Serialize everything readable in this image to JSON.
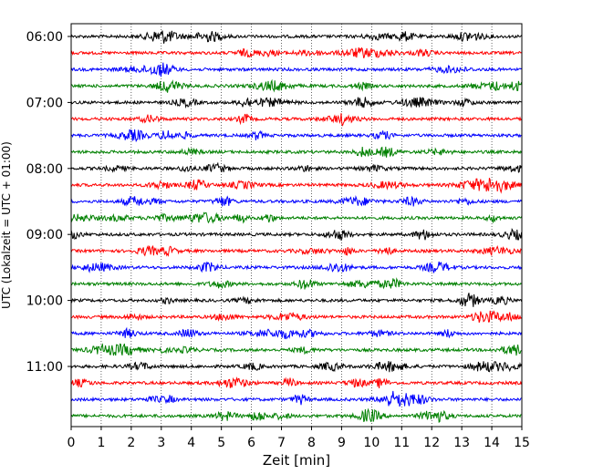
{
  "chart_data": {
    "type": "line",
    "title": "",
    "xlabel": "Zeit  [min]",
    "ylabel": "UTC (Lokalzeit = UTC + 01:00)",
    "xlim": [
      0,
      15
    ],
    "x_ticks": [
      "0",
      "1",
      "2",
      "3",
      "4",
      "5",
      "6",
      "7",
      "8",
      "9",
      "10",
      "11",
      "12",
      "13",
      "14",
      "15"
    ],
    "y_ticks": [
      "06:00",
      "07:00",
      "08:00",
      "09:00",
      "10:00",
      "11:00"
    ],
    "grid": "vertical dotted",
    "trace_interval_min": 15,
    "trace_count": 24,
    "trace_colors": [
      "#000000",
      "#ff0000",
      "#0000ff",
      "#008000"
    ],
    "series": [
      {
        "start": "06:00"
      },
      {
        "start": "06:15"
      },
      {
        "start": "06:30"
      },
      {
        "start": "06:45"
      },
      {
        "start": "07:00"
      },
      {
        "start": "07:15"
      },
      {
        "start": "07:30"
      },
      {
        "start": "07:45"
      },
      {
        "start": "08:00"
      },
      {
        "start": "08:15"
      },
      {
        "start": "08:30"
      },
      {
        "start": "08:45"
      },
      {
        "start": "09:00"
      },
      {
        "start": "09:15"
      },
      {
        "start": "09:30"
      },
      {
        "start": "09:45"
      },
      {
        "start": "10:00"
      },
      {
        "start": "10:15"
      },
      {
        "start": "10:30"
      },
      {
        "start": "10:45"
      },
      {
        "start": "11:00"
      },
      {
        "start": "11:15"
      },
      {
        "start": "11:30"
      },
      {
        "start": "11:45"
      }
    ]
  }
}
